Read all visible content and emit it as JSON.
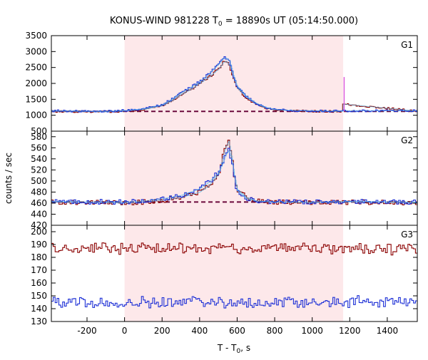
{
  "chart_data": {
    "type": "line",
    "title": "KONUS-WIND 981228 T",
    "title_sub": "0",
    "title_rest": " = 18890s UT (05:14:50.000)",
    "xlabel": "T - T",
    "xlabel_sub": "0",
    "xlabel_rest": ", s",
    "ylabel": "counts / sec",
    "xlim": [
      -390,
      1560
    ],
    "x_ticks": [
      -200,
      0,
      200,
      400,
      600,
      800,
      1000,
      1200,
      1400
    ],
    "highlight_interval": [
      0,
      1165
    ],
    "colors": {
      "highlight": "#fde8ea",
      "red": "#8b0000",
      "blue": "#1c2fd6",
      "cyan": "#4fb8e8",
      "magenta": "#d63fd6",
      "dashed": "#6b0a3c"
    },
    "panels": [
      {
        "label": "G1",
        "ylim": [
          500,
          3500
        ],
        "y_ticks": [
          500,
          1000,
          1500,
          2000,
          2500,
          3000,
          3500
        ],
        "background": 1120,
        "series": [
          {
            "color": "red",
            "x": [
              -390,
              -100,
              0,
              100,
              200,
              250,
              300,
              350,
              400,
              450,
              500,
              525,
              540,
              560,
              580,
              600,
              650,
              700,
              750,
              800,
              900,
              1000,
              1100,
              1160,
              1165,
              1560
            ],
            "values": [
              1120,
              1110,
              1130,
              1180,
              1300,
              1450,
              1650,
              1800,
              2000,
              2200,
              2450,
              2650,
              2700,
              2550,
              2150,
              1850,
              1550,
              1350,
              1230,
              1170,
              1140,
              1130,
              1120,
              1120,
              1350,
              1130
            ]
          },
          {
            "color": "blue",
            "x": [
              -390,
              -100,
              0,
              100,
              200,
              250,
              300,
              350,
              400,
              450,
              500,
              525,
              540,
              560,
              580,
              600,
              650,
              700,
              750,
              800,
              900,
              1000,
              1100,
              1160,
              1560
            ],
            "values": [
              1140,
              1120,
              1150,
              1200,
              1330,
              1500,
              1700,
              1870,
              2050,
              2300,
              2600,
              2780,
              2800,
              2700,
              2250,
              1900,
              1580,
              1380,
              1250,
              1180,
              1150,
              1140,
              1130,
              1140,
              1140
            ]
          }
        ],
        "spike": {
          "x": 1170,
          "value": 2200
        }
      },
      {
        "label": "G2",
        "ylim": [
          420,
          590
        ],
        "y_ticks": [
          420,
          440,
          460,
          480,
          500,
          520,
          540,
          560,
          580
        ],
        "background": 462,
        "series": [
          {
            "color": "red",
            "x": [
              -390,
              0,
              100,
              200,
              300,
              400,
              450,
              500,
              520,
              540,
              555,
              570,
              585,
              600,
              650,
              700,
              800,
              1000,
              1200,
              1560
            ],
            "values": [
              462,
              460,
              462,
              465,
              470,
              480,
              492,
              512,
              540,
              562,
              572,
              545,
              510,
              485,
              470,
              464,
              462,
              461,
              462,
              461
            ]
          },
          {
            "color": "blue",
            "x": [
              -390,
              0,
              100,
              200,
              300,
              400,
              450,
              500,
              520,
              540,
              555,
              570,
              585,
              600,
              650,
              700,
              800,
              1000,
              1200,
              1560
            ],
            "values": [
              463,
              462,
              464,
              468,
              474,
              486,
              498,
              515,
              530,
              548,
              555,
              540,
              505,
              482,
              468,
              464,
              462,
              462,
              463,
              462
            ]
          }
        ]
      },
      {
        "label": "G3",
        "ylim": [
          130,
          205
        ],
        "y_ticks": [
          130,
          140,
          150,
          160,
          170,
          180,
          190,
          200
        ],
        "series": [
          {
            "color": "red",
            "mean": 187
          },
          {
            "color": "blue",
            "mean": 145
          }
        ]
      }
    ]
  }
}
